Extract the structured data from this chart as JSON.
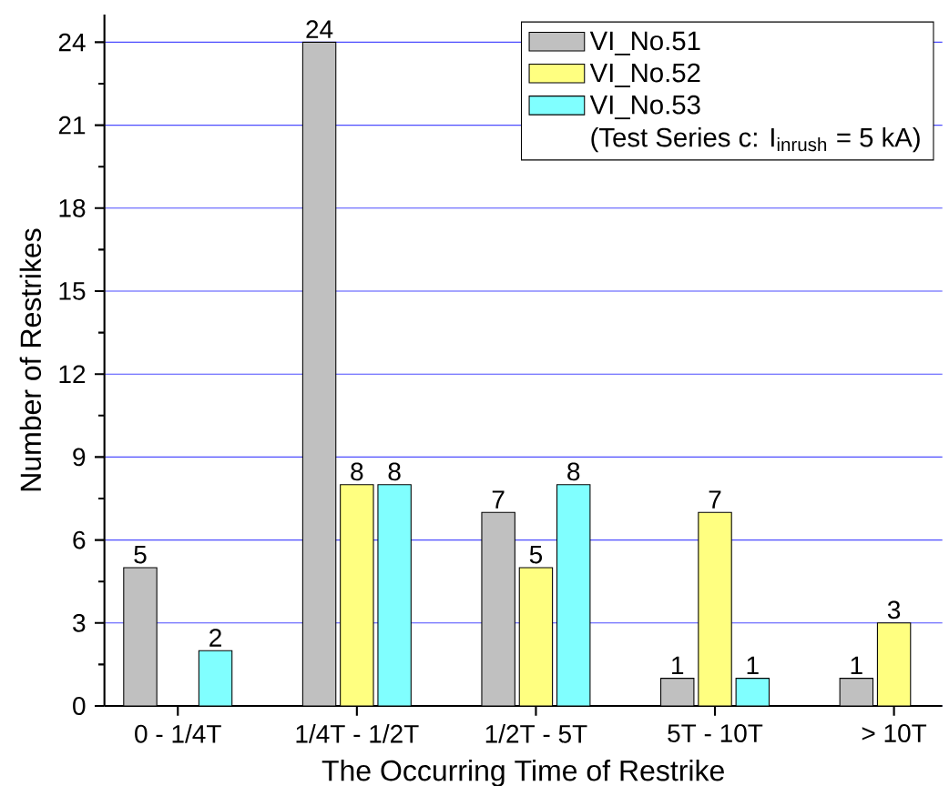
{
  "chart_data": {
    "type": "bar",
    "xlabel": "The Occurring Time of Restrike",
    "ylabel": "Number of Restrikes",
    "categories": [
      "0 - 1/4T",
      "1/4T - 1/2T",
      "1/2T - 5T",
      "5T - 10T",
      "> 10T"
    ],
    "series": [
      {
        "name": "VI_No.51",
        "color": "#c0c0c0",
        "values": [
          5,
          24,
          7,
          1,
          1
        ]
      },
      {
        "name": "VI_No.52",
        "color": "#ffff80",
        "values": [
          null,
          8,
          5,
          7,
          3
        ]
      },
      {
        "name": "VI_No.53",
        "color": "#80ffff",
        "values": [
          2,
          8,
          8,
          1,
          null
        ]
      }
    ],
    "legend_title": "(Test Series c: I$_{inrush}$ = 5 kA)",
    "ylim": [
      0,
      25
    ],
    "yticks": [
      0,
      3,
      6,
      9,
      12,
      15,
      18,
      21,
      24
    ],
    "grid": "y",
    "legend": "top right",
    "data_labels": true
  }
}
